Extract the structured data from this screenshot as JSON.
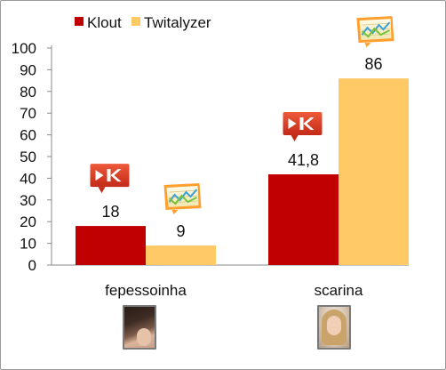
{
  "chart_data": {
    "type": "bar",
    "categories": [
      "fepessoinha",
      "scarina"
    ],
    "series": [
      {
        "name": "Klout",
        "values": [
          18,
          41.8
        ],
        "labels": [
          "18",
          "41,8"
        ],
        "color": "#c00000"
      },
      {
        "name": "Twitalyzer",
        "values": [
          9,
          86
        ],
        "labels": [
          "9",
          "86"
        ],
        "color": "#ffca66"
      }
    ],
    "ylim": [
      0,
      100
    ],
    "yticks": [
      0,
      10,
      20,
      30,
      40,
      50,
      60,
      70,
      80,
      90,
      100
    ],
    "legend": "top-left",
    "grid": false,
    "xlabel": "",
    "ylabel": "",
    "title": ""
  },
  "icons": {
    "klout": "klout-logo-icon",
    "twitalyzer": "twitalyzer-chart-icon"
  },
  "avatars": [
    "fepessoinha-avatar",
    "scarina-avatar"
  ]
}
